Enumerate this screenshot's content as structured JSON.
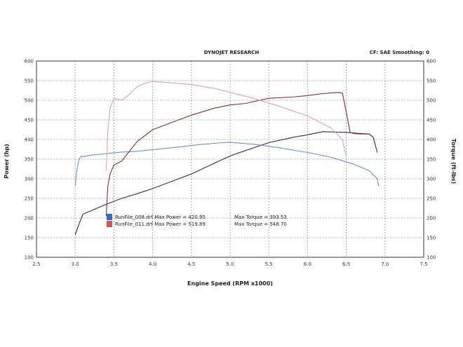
{
  "chart_data": {
    "type": "line",
    "title": "DYNOJET RESEARCH",
    "header_right": "CF: SAE  Smoothing: 0",
    "xlabel": "Engine Speed (RPM x1000)",
    "ylabel_left": "Power (hp)",
    "ylabel_right": "Torque (ft-lbs)",
    "xlim": [
      2.5,
      7.5
    ],
    "ylim": [
      100,
      600
    ],
    "xticks": [
      "2.5",
      "3.0",
      "3.5",
      "4.0",
      "4.5",
      "5.0",
      "5.5",
      "6.0",
      "6.5",
      "7.0",
      "7.5"
    ],
    "yticks": [
      "100",
      "150",
      "200",
      "250",
      "300",
      "350",
      "400",
      "450",
      "500",
      "550",
      "600"
    ],
    "grid": true,
    "legend_placement": "bottom-left",
    "series": [
      {
        "name": "RunFile_008.drf Max Power = 420.95",
        "kind": "power",
        "color": "#2a2a6e",
        "x": [
          3.0,
          3.05,
          3.1,
          3.2,
          3.4,
          3.6,
          3.8,
          4.0,
          4.2,
          4.5,
          4.8,
          5.0,
          5.2,
          5.5,
          5.8,
          6.0,
          6.2,
          6.5,
          6.7,
          6.8,
          6.85,
          6.9
        ],
        "y": [
          158,
          185,
          210,
          218,
          235,
          250,
          262,
          275,
          290,
          312,
          340,
          358,
          372,
          392,
          405,
          412,
          420,
          418,
          415,
          414,
          405,
          367
        ]
      },
      {
        "name": "RunFile_008.drf Max Torque = 393.53",
        "kind": "torque",
        "color": "#6a8fd6",
        "x": [
          3.0,
          3.02,
          3.05,
          3.08,
          3.1,
          3.2,
          3.4,
          3.6,
          3.8,
          4.0,
          4.3,
          4.6,
          4.9,
          5.0,
          5.3,
          5.6,
          6.0,
          6.3,
          6.6,
          6.8,
          6.9,
          6.92
        ],
        "y": [
          282,
          320,
          350,
          358,
          356,
          360,
          364,
          368,
          370,
          374,
          380,
          387,
          392,
          393,
          388,
          380,
          367,
          355,
          337,
          320,
          300,
          280
        ]
      },
      {
        "name": "RunFile_011.drf Max Power = 519.89",
        "kind": "power",
        "color": "#8c2a2a",
        "x": [
          3.4,
          3.42,
          3.45,
          3.5,
          3.6,
          3.8,
          4.0,
          4.2,
          4.5,
          4.8,
          5.0,
          5.2,
          5.5,
          5.8,
          6.0,
          6.2,
          6.4,
          6.45,
          6.5,
          6.55,
          6.6,
          6.7,
          6.8
        ],
        "y": [
          205,
          280,
          312,
          335,
          345,
          395,
          425,
          440,
          462,
          480,
          488,
          492,
          505,
          508,
          512,
          517,
          520,
          518,
          470,
          418,
          415,
          414,
          414
        ]
      },
      {
        "name": "RunFile_011.drf Max Torque = 548.70",
        "kind": "torque",
        "color": "#e2a0a0",
        "x": [
          3.4,
          3.42,
          3.45,
          3.5,
          3.6,
          3.7,
          3.8,
          3.9,
          4.0,
          4.2,
          4.5,
          4.8,
          5.0,
          5.3,
          5.6,
          6.0,
          6.3,
          6.45,
          6.5
        ],
        "y": [
          320,
          420,
          480,
          505,
          500,
          515,
          535,
          543,
          548,
          545,
          540,
          530,
          520,
          505,
          487,
          460,
          430,
          400,
          358
        ]
      }
    ]
  }
}
